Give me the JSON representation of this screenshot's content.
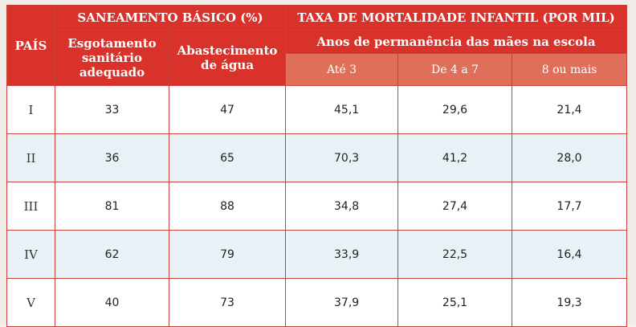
{
  "headers": {
    "country": "PAÍS",
    "sanitation_group": "SANEAMENTO BÁSICO (%)",
    "mortality_group": "TAXA DE MORTALIDADE INFANTIL (POR MIL)",
    "sewage": "Esgotamento sanitário adequado",
    "water": "Abastecimento de água",
    "schooling": "Anos de permanência das mães na escola",
    "school_levels": [
      "Até 3",
      "De 4 a 7",
      "8 ou mais"
    ]
  },
  "rows": [
    {
      "country": "I",
      "sewage": "33",
      "water": "47",
      "m1": "45,1",
      "m2": "29,6",
      "m3": "21,4"
    },
    {
      "country": "II",
      "sewage": "36",
      "water": "65",
      "m1": "70,3",
      "m2": "41,2",
      "m3": "28,0"
    },
    {
      "country": "III",
      "sewage": "81",
      "water": "88",
      "m1": "34,8",
      "m2": "27,4",
      "m3": "17,7"
    },
    {
      "country": "IV",
      "sewage": "62",
      "water": "79",
      "m1": "33,9",
      "m2": "22,5",
      "m3": "16,4"
    },
    {
      "country": "V",
      "sewage": "40",
      "water": "73",
      "m1": "37,9",
      "m2": "25,1",
      "m3": "19,3"
    }
  ],
  "colors": {
    "header": "#d8322b",
    "subheader": "#e06f5a",
    "alt_row": "#e8f2f6"
  }
}
